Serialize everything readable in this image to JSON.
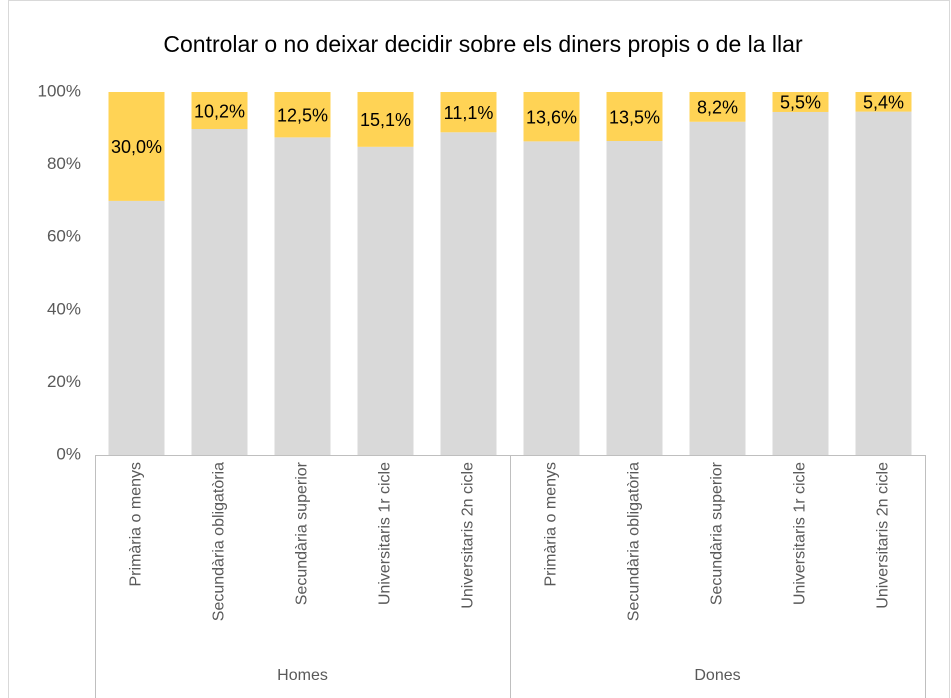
{
  "chart_data": {
    "type": "stacked_bar",
    "title": "Controlar o no deixar decidir sobre els diners propis o de la llar",
    "category_groups": [
      {
        "label": "Homes",
        "categories": [
          "Primària o menys",
          "Secundària obligatòria",
          "Secundària superior",
          "Universitaris 1r cicle",
          "Universitaris 2n cicle"
        ]
      },
      {
        "label": "Dones",
        "categories": [
          "Primària o menys",
          "Secundària obligatòria",
          "Secundària superior",
          "Universitaris 1r cicle",
          "Universitaris 2n cicle"
        ]
      }
    ],
    "series": [
      {
        "color": "#d9d9d9",
        "values": [
          70.0,
          89.8,
          87.5,
          84.9,
          88.9,
          86.4,
          86.5,
          91.8,
          94.5,
          94.6
        ]
      },
      {
        "color": "#ffd355",
        "values": [
          30.0,
          10.2,
          12.5,
          15.1,
          11.1,
          13.6,
          13.5,
          8.2,
          5.5,
          5.4
        ],
        "value_labels": [
          "30,0%",
          "10,2%",
          "12,5%",
          "15,1%",
          "11,1%",
          "13,6%",
          "13,5%",
          "8,2%",
          "5,5%",
          "5,4%"
        ]
      }
    ],
    "ylim": [
      0,
      100
    ],
    "yticks": [
      {
        "value": 0,
        "label": "0%"
      },
      {
        "value": 20,
        "label": "20%"
      },
      {
        "value": 40,
        "label": "40%"
      },
      {
        "value": 60,
        "label": "60%"
      },
      {
        "value": 80,
        "label": "80%"
      },
      {
        "value": 100,
        "label": "100%"
      }
    ],
    "grid": false
  }
}
